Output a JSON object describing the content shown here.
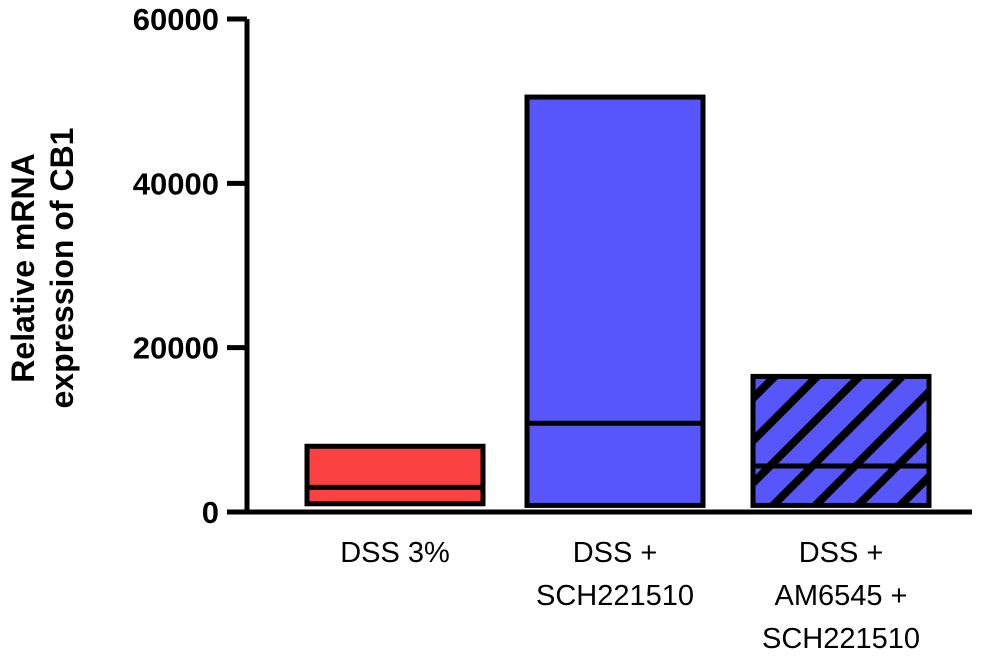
{
  "chart_data": {
    "type": "bar",
    "subtype": "floating-box",
    "title": "",
    "xlabel": "",
    "ylabel_lines": [
      "Relative mRNA",
      "expression of CB1"
    ],
    "ylim": [
      0,
      60000
    ],
    "yticks": [
      0,
      20000,
      40000,
      60000
    ],
    "ytick_labels": [
      "0",
      "20000",
      "40000",
      "60000"
    ],
    "categories": [
      {
        "name": "DSS 3%",
        "lines": [
          "DSS 3%"
        ]
      },
      {
        "name": "DSS + SCH221510",
        "lines": [
          "DSS +",
          "SCH221510"
        ]
      },
      {
        "name": "DSS + AM6545 + SCH221510",
        "lines": [
          "DSS +",
          "AM6545 +",
          "SCH221510"
        ]
      }
    ],
    "series": [
      {
        "name": "min",
        "values": [
          1000,
          800,
          800
        ]
      },
      {
        "name": "max",
        "values": [
          8000,
          50500,
          16500
        ]
      },
      {
        "name": "median",
        "values": [
          3000,
          10800,
          5600
        ]
      }
    ],
    "fills": [
      "#fb4141",
      "#5656fa",
      "#5656fa"
    ],
    "hatched": [
      false,
      false,
      true
    ]
  }
}
